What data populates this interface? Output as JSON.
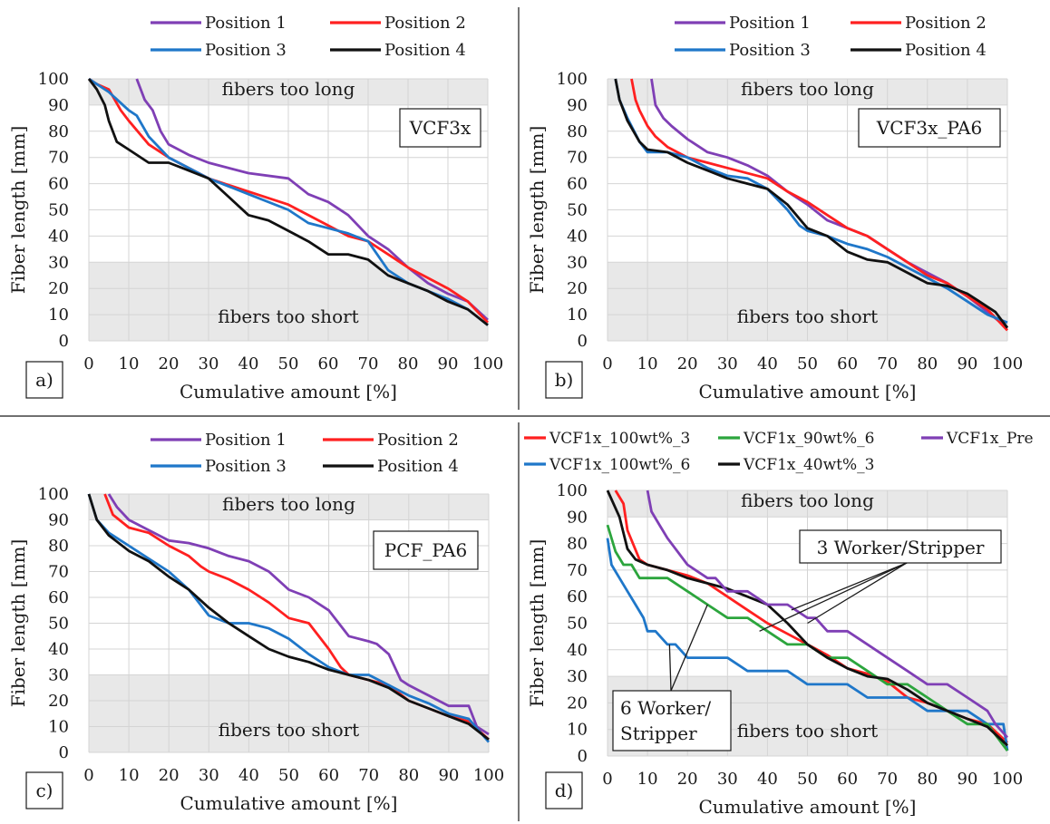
{
  "colors": {
    "purple": "#7f3fb5",
    "red": "#ff2020",
    "blue": "#1f77c9",
    "green": "#2ca53d",
    "black": "#111111",
    "band": "#e8e8e8"
  },
  "chart_data": [
    {
      "type": "line",
      "panel_label": "a)",
      "tag": "VCF3x",
      "xlabel": "Cumulative amount [%]",
      "ylabel": "Fiber length [mm]",
      "xlim": [
        0,
        100
      ],
      "ylim": [
        0,
        100
      ],
      "x_ticks": [
        "0",
        "10",
        "20",
        "30",
        "40",
        "50",
        "60",
        "70",
        "80",
        "90",
        "100"
      ],
      "y_ticks": [
        "0",
        "10",
        "20",
        "30",
        "40",
        "50",
        "60",
        "70",
        "80",
        "90",
        "100"
      ],
      "grid": true,
      "bands": {
        "upper": {
          "from": 90,
          "to": 100,
          "label": "fibers too long"
        },
        "lower": {
          "from": 0,
          "to": 30,
          "label": "fibers too short"
        }
      },
      "legend": "top",
      "series": [
        {
          "name": "Position 1",
          "color": "#7f3fb5",
          "x": [
            12,
            14,
            16,
            18,
            20,
            25,
            30,
            40,
            50,
            55,
            60,
            65,
            70,
            75,
            80,
            85,
            90,
            95,
            100
          ],
          "y": [
            100,
            92,
            88,
            80,
            75,
            71,
            68,
            64,
            62,
            56,
            53,
            48,
            40,
            35,
            28,
            22,
            18,
            15,
            8
          ]
        },
        {
          "name": "Position 2",
          "color": "#ff2020",
          "x": [
            0,
            2,
            5,
            8,
            10,
            15,
            20,
            25,
            30,
            40,
            50,
            60,
            65,
            70,
            75,
            80,
            85,
            90,
            95,
            100
          ],
          "y": [
            100,
            98,
            96,
            88,
            84,
            75,
            70,
            66,
            62,
            57,
            52,
            44,
            40,
            38,
            33,
            28,
            24,
            20,
            15,
            7
          ]
        },
        {
          "name": "Position 3",
          "color": "#1f77c9",
          "x": [
            0,
            2,
            5,
            10,
            12,
            15,
            20,
            25,
            30,
            40,
            50,
            55,
            60,
            65,
            70,
            75,
            80,
            85,
            90,
            95,
            100
          ],
          "y": [
            100,
            98,
            95,
            88,
            86,
            78,
            70,
            66,
            62,
            56,
            50,
            45,
            43,
            41,
            38,
            27,
            22,
            19,
            16,
            12,
            6
          ]
        },
        {
          "name": "Position 4",
          "color": "#111111",
          "x": [
            0,
            2,
            4,
            5,
            7,
            10,
            15,
            20,
            25,
            30,
            35,
            40,
            45,
            50,
            55,
            60,
            65,
            70,
            75,
            80,
            85,
            90,
            95,
            100
          ],
          "y": [
            100,
            96,
            90,
            84,
            76,
            73,
            68,
            68,
            65,
            62,
            55,
            48,
            46,
            42,
            38,
            33,
            33,
            31,
            25,
            22,
            19,
            15,
            12,
            6
          ]
        }
      ]
    },
    {
      "type": "line",
      "panel_label": "b)",
      "tag": "VCF3x_PA6",
      "xlabel": "Cumulative amount [%]",
      "ylabel": "Fiber length [mm]",
      "xlim": [
        0,
        100
      ],
      "ylim": [
        0,
        100
      ],
      "x_ticks": [
        "0",
        "10",
        "20",
        "30",
        "40",
        "50",
        "60",
        "70",
        "80",
        "90",
        "100"
      ],
      "y_ticks": [
        "0",
        "10",
        "20",
        "30",
        "40",
        "50",
        "60",
        "70",
        "80",
        "90",
        "100"
      ],
      "grid": true,
      "bands": {
        "upper": {
          "from": 90,
          "to": 100,
          "label": "fibers too long"
        },
        "lower": {
          "from": 0,
          "to": 30,
          "label": "fibers too short"
        }
      },
      "legend": "top",
      "series": [
        {
          "name": "Position 1",
          "color": "#7f3fb5",
          "x": [
            11,
            12,
            14,
            16,
            20,
            25,
            30,
            35,
            40,
            45,
            50,
            55,
            60,
            65,
            70,
            75,
            80,
            85,
            90,
            95,
            100
          ],
          "y": [
            100,
            90,
            85,
            82,
            77,
            72,
            70,
            67,
            63,
            57,
            52,
            46,
            43,
            40,
            35,
            30,
            26,
            22,
            17,
            11,
            5
          ]
        },
        {
          "name": "Position 2",
          "color": "#ff2020",
          "x": [
            6,
            7,
            8,
            10,
            12,
            15,
            20,
            25,
            30,
            40,
            45,
            50,
            55,
            60,
            65,
            70,
            75,
            80,
            85,
            90,
            95,
            100
          ],
          "y": [
            100,
            92,
            88,
            82,
            78,
            74,
            70,
            68,
            66,
            62,
            57,
            53,
            48,
            43,
            40,
            35,
            30,
            25,
            22,
            17,
            12,
            4
          ]
        },
        {
          "name": "Position 3",
          "color": "#1f77c9",
          "x": [
            2,
            3,
            5,
            8,
            10,
            15,
            20,
            25,
            30,
            35,
            40,
            45,
            48,
            50,
            55,
            60,
            65,
            70,
            75,
            80,
            85,
            90,
            95,
            100
          ],
          "y": [
            100,
            92,
            85,
            76,
            72,
            72,
            70,
            66,
            63,
            62,
            58,
            50,
            44,
            42,
            40,
            37,
            35,
            32,
            28,
            24,
            20,
            15,
            10,
            7
          ]
        },
        {
          "name": "Position 4",
          "color": "#111111",
          "x": [
            2,
            3,
            5,
            8,
            10,
            15,
            20,
            25,
            30,
            35,
            40,
            45,
            50,
            55,
            60,
            65,
            70,
            75,
            80,
            85,
            90,
            93,
            95,
            97,
            100
          ],
          "y": [
            100,
            92,
            84,
            76,
            73,
            72,
            68,
            65,
            62,
            60,
            58,
            52,
            43,
            40,
            34,
            31,
            30,
            26,
            22,
            21,
            18,
            15,
            13,
            11,
            5
          ]
        }
      ]
    },
    {
      "type": "line",
      "panel_label": "c)",
      "tag": "PCF_PA6",
      "xlabel": "Cumulative amount [%]",
      "ylabel": "Fiber length [mm]",
      "xlim": [
        0,
        100
      ],
      "ylim": [
        0,
        100
      ],
      "x_ticks": [
        "0",
        "10",
        "20",
        "30",
        "40",
        "50",
        "60",
        "70",
        "80",
        "90",
        "100"
      ],
      "y_ticks": [
        "0",
        "10",
        "20",
        "30",
        "40",
        "50",
        "60",
        "70",
        "80",
        "90",
        "100"
      ],
      "grid": true,
      "bands": {
        "upper": {
          "from": 90,
          "to": 100,
          "label": "fibers too long"
        },
        "lower": {
          "from": 0,
          "to": 30,
          "label": "fibers too short"
        }
      },
      "legend": "top",
      "series": [
        {
          "name": "Position 1",
          "color": "#7f3fb5",
          "x": [
            5,
            7,
            10,
            15,
            20,
            25,
            30,
            35,
            40,
            45,
            50,
            55,
            60,
            65,
            70,
            72,
            75,
            78,
            80,
            85,
            90,
            95,
            97,
            100
          ],
          "y": [
            100,
            95,
            90,
            86,
            82,
            81,
            79,
            76,
            74,
            70,
            63,
            60,
            55,
            45,
            43,
            42,
            38,
            28,
            26,
            22,
            18,
            18,
            10,
            7
          ]
        },
        {
          "name": "Position 2",
          "color": "#ff2020",
          "x": [
            4,
            6,
            10,
            15,
            20,
            25,
            28,
            30,
            35,
            40,
            45,
            50,
            55,
            60,
            63,
            65,
            70,
            75,
            80,
            85,
            90,
            95,
            100
          ],
          "y": [
            100,
            92,
            87,
            85,
            80,
            76,
            72,
            70,
            67,
            63,
            58,
            52,
            50,
            40,
            33,
            30,
            28,
            26,
            20,
            17,
            14,
            12,
            5
          ]
        },
        {
          "name": "Position 3",
          "color": "#1f77c9",
          "x": [
            0,
            2,
            5,
            10,
            15,
            20,
            25,
            30,
            35,
            40,
            45,
            50,
            55,
            60,
            65,
            70,
            75,
            80,
            85,
            90,
            95,
            100
          ],
          "y": [
            100,
            90,
            85,
            80,
            75,
            70,
            63,
            53,
            50,
            50,
            48,
            44,
            38,
            33,
            30,
            30,
            26,
            22,
            19,
            15,
            13,
            4
          ]
        },
        {
          "name": "Position 4",
          "color": "#111111",
          "x": [
            0,
            2,
            5,
            10,
            15,
            20,
            25,
            30,
            35,
            40,
            45,
            50,
            55,
            60,
            65,
            70,
            75,
            80,
            85,
            90,
            95,
            100
          ],
          "y": [
            100,
            90,
            84,
            78,
            74,
            68,
            63,
            56,
            50,
            45,
            40,
            37,
            35,
            32,
            30,
            28,
            25,
            20,
            17,
            14,
            11,
            5
          ]
        }
      ]
    },
    {
      "type": "line",
      "panel_label": "d)",
      "xlabel": "Cumulative amount [%]",
      "ylabel": "Fiber length [mm]",
      "xlim": [
        0,
        100
      ],
      "ylim": [
        0,
        100
      ],
      "x_ticks": [
        "0",
        "10",
        "20",
        "30",
        "40",
        "50",
        "60",
        "70",
        "80",
        "90",
        "100"
      ],
      "y_ticks": [
        "0",
        "10",
        "20",
        "30",
        "40",
        "50",
        "60",
        "70",
        "80",
        "90",
        "100"
      ],
      "grid": true,
      "bands": {
        "upper": {
          "from": 90,
          "to": 100,
          "label": "fibers too long"
        },
        "lower": {
          "from": 0,
          "to": 30,
          "label": "fibers too short"
        }
      },
      "legend": "top",
      "annotations": [
        "3 Worker/Stripper",
        "6 Worker/\nStripper"
      ],
      "series": [
        {
          "name": "VCF1x_100wt%_3",
          "color": "#ff2020",
          "x": [
            2,
            4,
            5,
            8,
            10,
            15,
            20,
            25,
            30,
            35,
            40,
            45,
            50,
            55,
            60,
            65,
            70,
            75,
            80,
            85,
            90,
            95,
            100
          ],
          "y": [
            100,
            95,
            85,
            74,
            72,
            70,
            68,
            65,
            60,
            55,
            50,
            46,
            42,
            38,
            33,
            31,
            28,
            22,
            20,
            17,
            14,
            12,
            5
          ]
        },
        {
          "name": "VCF1x_100wt%_6",
          "color": "#1f77c9",
          "x": [
            0,
            1,
            3,
            5,
            7,
            9,
            10,
            12,
            15,
            17,
            20,
            25,
            30,
            35,
            40,
            45,
            50,
            55,
            60,
            65,
            70,
            75,
            80,
            85,
            90,
            95,
            99,
            100
          ],
          "y": [
            82,
            72,
            67,
            62,
            57,
            52,
            47,
            47,
            42,
            42,
            37,
            37,
            37,
            32,
            32,
            32,
            27,
            27,
            27,
            22,
            22,
            22,
            17,
            17,
            17,
            12,
            12,
            2
          ]
        },
        {
          "name": "VCF1x_90wt%_6",
          "color": "#2ca53d",
          "x": [
            0,
            2,
            4,
            6,
            8,
            10,
            15,
            20,
            25,
            30,
            35,
            40,
            45,
            50,
            55,
            60,
            65,
            70,
            75,
            80,
            85,
            90,
            95,
            100
          ],
          "y": [
            87,
            77,
            72,
            72,
            67,
            67,
            67,
            62,
            57,
            52,
            52,
            47,
            42,
            42,
            37,
            37,
            32,
            27,
            27,
            22,
            17,
            12,
            12,
            2
          ]
        },
        {
          "name": "VCF1x_40wt%_3",
          "color": "#111111",
          "x": [
            0,
            3,
            5,
            7,
            10,
            15,
            20,
            25,
            30,
            35,
            40,
            45,
            50,
            55,
            60,
            65,
            70,
            75,
            80,
            85,
            90,
            95,
            100
          ],
          "y": [
            100,
            90,
            78,
            74,
            72,
            70,
            67,
            65,
            63,
            60,
            57,
            50,
            42,
            37,
            33,
            30,
            29,
            25,
            20,
            17,
            14,
            11,
            4
          ]
        },
        {
          "name": "VCF1x_Pre",
          "color": "#7f3fb5",
          "x": [
            10,
            11,
            13,
            15,
            20,
            25,
            27,
            30,
            33,
            35,
            40,
            43,
            45,
            50,
            52,
            55,
            57,
            60,
            65,
            70,
            75,
            80,
            85,
            90,
            95,
            97,
            100
          ],
          "y": [
            100,
            92,
            87,
            82,
            72,
            67,
            67,
            62,
            62,
            62,
            57,
            57,
            57,
            52,
            52,
            47,
            47,
            47,
            42,
            37,
            32,
            27,
            27,
            22,
            17,
            12,
            7
          ]
        }
      ]
    }
  ]
}
